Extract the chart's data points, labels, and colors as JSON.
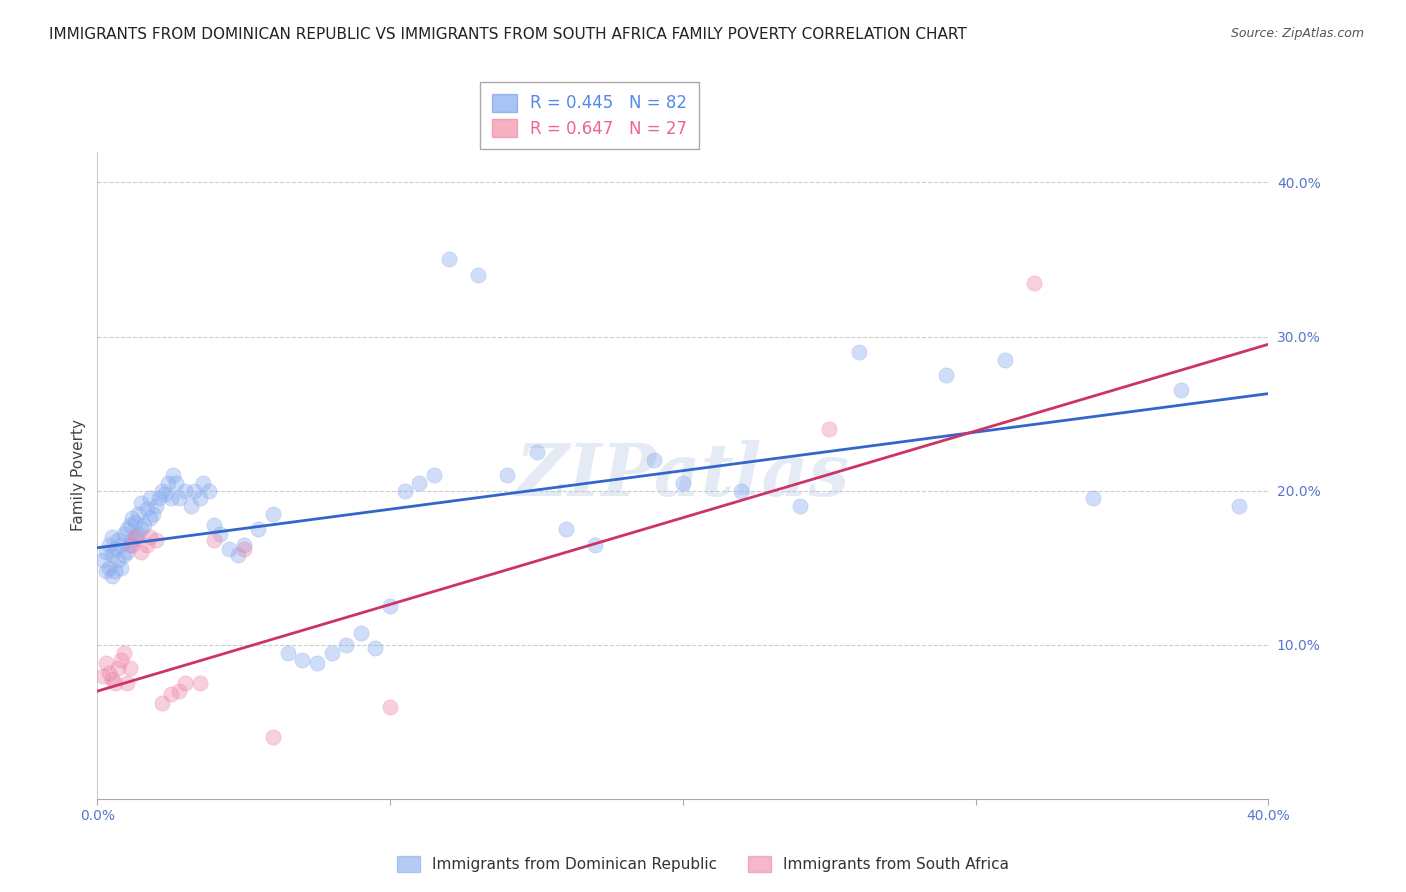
{
  "title": "IMMIGRANTS FROM DOMINICAN REPUBLIC VS IMMIGRANTS FROM SOUTH AFRICA FAMILY POVERTY CORRELATION CHART",
  "source": "Source: ZipAtlas.com",
  "ylabel": "Family Poverty",
  "ytick_labels": [
    "10.0%",
    "20.0%",
    "30.0%",
    "40.0%"
  ],
  "ytick_values": [
    0.1,
    0.2,
    0.3,
    0.4
  ],
  "xlim": [
    0.0,
    0.4
  ],
  "ylim": [
    0.0,
    0.42
  ],
  "legend_r_n": [
    {
      "R": "0.445",
      "N": "82",
      "color": "#5588ee"
    },
    {
      "R": "0.647",
      "N": "27",
      "color": "#ee6688"
    }
  ],
  "blue_scatter_x": [
    0.002,
    0.003,
    0.003,
    0.004,
    0.004,
    0.005,
    0.005,
    0.005,
    0.006,
    0.006,
    0.007,
    0.007,
    0.008,
    0.008,
    0.009,
    0.009,
    0.01,
    0.01,
    0.011,
    0.011,
    0.012,
    0.012,
    0.013,
    0.013,
    0.014,
    0.014,
    0.015,
    0.015,
    0.016,
    0.017,
    0.018,
    0.018,
    0.019,
    0.02,
    0.021,
    0.022,
    0.023,
    0.024,
    0.025,
    0.026,
    0.027,
    0.028,
    0.03,
    0.032,
    0.033,
    0.035,
    0.036,
    0.038,
    0.04,
    0.042,
    0.045,
    0.048,
    0.05,
    0.055,
    0.06,
    0.065,
    0.07,
    0.075,
    0.08,
    0.085,
    0.09,
    0.095,
    0.1,
    0.105,
    0.11,
    0.115,
    0.12,
    0.13,
    0.14,
    0.15,
    0.16,
    0.17,
    0.19,
    0.2,
    0.22,
    0.24,
    0.26,
    0.29,
    0.31,
    0.34,
    0.37,
    0.39
  ],
  "blue_scatter_y": [
    0.155,
    0.148,
    0.16,
    0.15,
    0.165,
    0.145,
    0.158,
    0.17,
    0.148,
    0.162,
    0.155,
    0.168,
    0.15,
    0.165,
    0.158,
    0.172,
    0.16,
    0.175,
    0.165,
    0.178,
    0.168,
    0.182,
    0.17,
    0.18,
    0.172,
    0.185,
    0.175,
    0.192,
    0.178,
    0.188,
    0.182,
    0.195,
    0.185,
    0.19,
    0.195,
    0.2,
    0.198,
    0.205,
    0.195,
    0.21,
    0.205,
    0.195,
    0.2,
    0.19,
    0.2,
    0.195,
    0.205,
    0.2,
    0.178,
    0.172,
    0.162,
    0.158,
    0.165,
    0.175,
    0.185,
    0.095,
    0.09,
    0.088,
    0.095,
    0.1,
    0.108,
    0.098,
    0.125,
    0.2,
    0.205,
    0.21,
    0.35,
    0.34,
    0.21,
    0.225,
    0.175,
    0.165,
    0.22,
    0.205,
    0.2,
    0.19,
    0.29,
    0.275,
    0.285,
    0.195,
    0.265,
    0.19
  ],
  "pink_scatter_x": [
    0.002,
    0.003,
    0.004,
    0.005,
    0.006,
    0.007,
    0.008,
    0.009,
    0.01,
    0.011,
    0.012,
    0.013,
    0.015,
    0.017,
    0.018,
    0.02,
    0.022,
    0.025,
    0.028,
    0.03,
    0.035,
    0.04,
    0.05,
    0.06,
    0.1,
    0.25,
    0.32
  ],
  "pink_scatter_y": [
    0.08,
    0.088,
    0.082,
    0.078,
    0.075,
    0.085,
    0.09,
    0.095,
    0.075,
    0.085,
    0.165,
    0.17,
    0.16,
    0.165,
    0.17,
    0.168,
    0.062,
    0.068,
    0.07,
    0.075,
    0.075,
    0.168,
    0.162,
    0.04,
    0.06,
    0.24,
    0.335
  ],
  "blue_line_x": [
    0.0,
    0.4
  ],
  "blue_line_y": [
    0.163,
    0.263
  ],
  "pink_line_x": [
    0.0,
    0.4
  ],
  "pink_line_y": [
    0.07,
    0.295
  ],
  "blue_dot_color": "#88aaee",
  "blue_dot_edge": "#88aaee",
  "pink_dot_color": "#ee88aa",
  "pink_dot_edge": "#ee88aa",
  "blue_line_color": "#3366cc",
  "pink_line_color": "#cc3366",
  "watermark": "ZIPatlas",
  "watermark_color": "#aac0e0",
  "title_fontsize": 11,
  "axis_label_fontsize": 10,
  "tick_fontsize": 10,
  "legend_fontsize": 12,
  "dot_size": 120,
  "dot_alpha": 0.4,
  "line_width": 2.0
}
